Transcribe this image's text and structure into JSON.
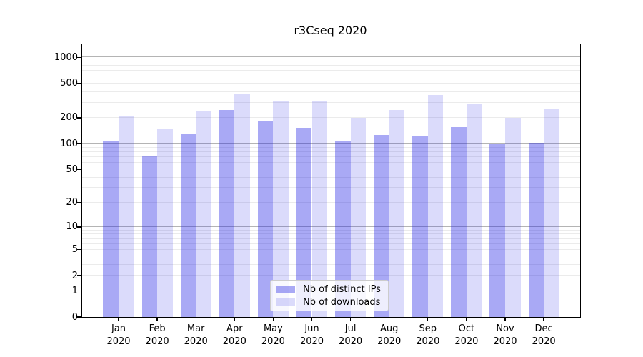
{
  "chart_data": {
    "type": "bar",
    "title": "r3Cseq 2020",
    "categories": [
      "Jan",
      "Feb",
      "Mar",
      "Apr",
      "May",
      "Jun",
      "Jul",
      "Aug",
      "Sep",
      "Oct",
      "Nov",
      "Dec"
    ],
    "year_label": "2020",
    "series": [
      {
        "name": "Nb of distinct IPs",
        "color": "rgba(30,30,230,0.38)",
        "values": [
          108,
          72,
          130,
          245,
          181,
          154,
          108,
          127,
          121,
          157,
          100,
          102
        ]
      },
      {
        "name": "Nb of downloads",
        "color": "rgba(30,30,230,0.16)",
        "values": [
          213,
          150,
          238,
          377,
          310,
          315,
          198,
          245,
          365,
          285,
          200,
          250
        ]
      }
    ],
    "yscale": "log1p",
    "yticks": [
      0,
      1,
      2,
      5,
      10,
      20,
      50,
      100,
      200,
      500,
      1000
    ],
    "ylim": [
      0,
      1421
    ],
    "grid": {
      "major_values": [
        1,
        10,
        100,
        1000
      ],
      "major_color": "#b4b4b4",
      "minor_color": "#ebebeb"
    },
    "legend": {
      "entries": [
        "Nb of distinct IPs",
        "Nb of downloads"
      ],
      "position": "lower center"
    }
  }
}
